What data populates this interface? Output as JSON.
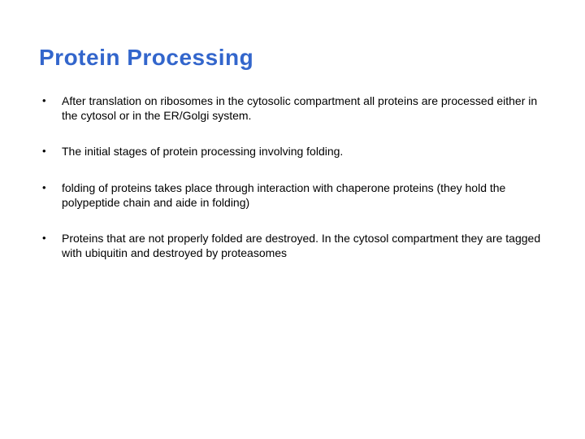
{
  "slide": {
    "title": "Protein Processing",
    "title_color": "#3366cc",
    "title_fontsize": 28,
    "body_fontsize": 14,
    "body_color": "#000000",
    "background_color": "#ffffff",
    "bullets": [
      {
        "text": "After translation on ribosomes in the cytosolic compartment all proteins are processed either in the cytosol or in the ER/Golgi system."
      },
      {
        "text": "The initial stages of protein processing involving folding."
      },
      {
        "text": "folding of proteins takes place through interaction with chaperone proteins (they hold the polypeptide chain and aide in folding)"
      },
      {
        "text": "Proteins that are not properly folded are destroyed.  In the cytosol compartment they are tagged with ubiquitin and destroyed by proteasomes"
      }
    ],
    "bullet_marker": "•"
  }
}
